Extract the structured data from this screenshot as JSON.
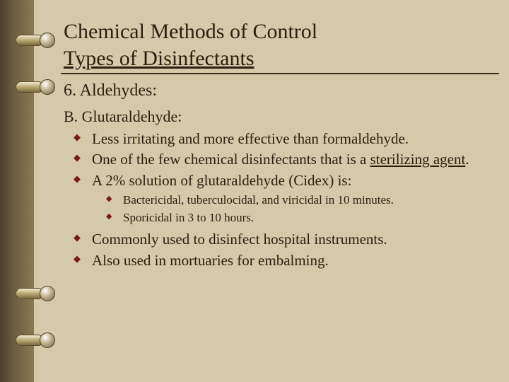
{
  "colors": {
    "background": "#d4c9a8",
    "text": "#2a1f0e",
    "bullet": "#7a1818",
    "rule": "#3a2f1a"
  },
  "typography": {
    "family": "Times New Roman",
    "title_fontsize": 30,
    "section_fontsize": 24,
    "subhead_fontsize": 22,
    "body_fontsize": 21,
    "sub_fontsize": 17
  },
  "title": {
    "line1": "Chemical Methods of Control",
    "line2": "Types of Disinfectants"
  },
  "section": {
    "heading": "6. Aldehydes:",
    "subheading": "B. Glutaraldehyde:"
  },
  "bullets": {
    "b1": "Less irritating and more effective than formaldehyde.",
    "b2_pre": "One of the few chemical disinfectants that is a ",
    "b2_u": "sterilizing agent",
    "b2_post": ".",
    "b3": "A 2% solution of glutaraldehyde (Cidex) is:",
    "b4": "Commonly used to disinfect hospital instruments.",
    "b5": "Also used in mortuaries for embalming."
  },
  "sub_bullets": {
    "s1": "Bactericidal, tuberculocidal, and viricidal in 10 minutes.",
    "s2": "Sporicidal in 3 to 10 hours."
  }
}
